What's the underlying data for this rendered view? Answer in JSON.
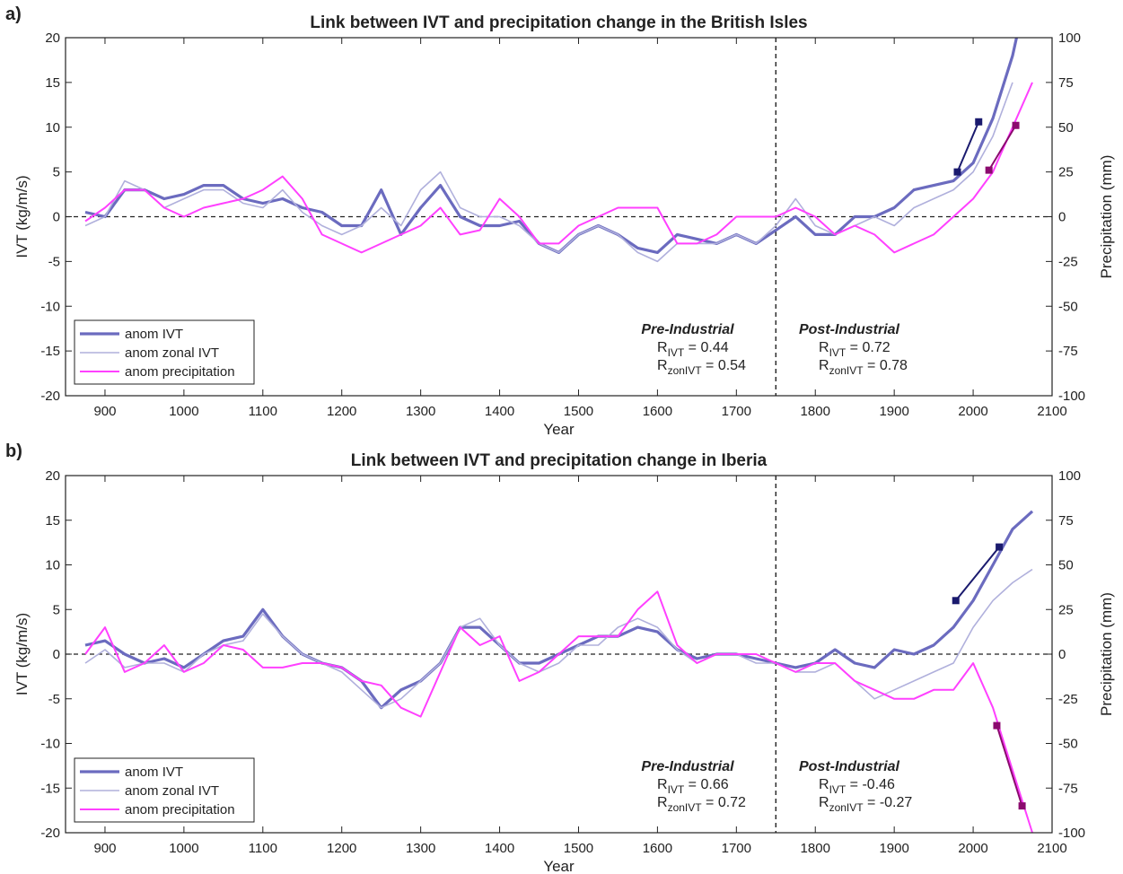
{
  "chart_data": [
    {
      "panel": "a)",
      "type": "line",
      "title": "Link between IVT and precipitation change in the British Isles",
      "xlabel": "Year",
      "ylabel": "IVT (kg/m/s)",
      "y2label": "Precipitation (mm)",
      "xlim": [
        850,
        2100
      ],
      "ylim": [
        -20,
        20
      ],
      "y2lim": [
        -100,
        100
      ],
      "xticks": [
        "900",
        "1000",
        "1100",
        "1200",
        "1300",
        "1400",
        "1500",
        "1600",
        "1700",
        "1800",
        "1900",
        "2000",
        "2100"
      ],
      "yticks": [
        "20",
        "15",
        "10",
        "5",
        "0",
        "-5",
        "-10",
        "-15",
        "-20"
      ],
      "y2ticks": [
        "100",
        "75",
        "50",
        "25",
        "0",
        "-25",
        "-50",
        "-75",
        "-100"
      ],
      "divider_x": 1750,
      "grid": false,
      "legend_position": "bottom-left",
      "legend": [
        "anom IVT",
        "anom zonal IVT",
        "anom precipitation"
      ],
      "series": [
        {
          "name": "anom IVT",
          "color": "#6b6bbf",
          "x": [
            875,
            900,
            925,
            950,
            975,
            1000,
            1025,
            1050,
            1075,
            1100,
            1125,
            1150,
            1175,
            1200,
            1225,
            1250,
            1275,
            1300,
            1325,
            1350,
            1375,
            1400,
            1425,
            1450,
            1475,
            1500,
            1525,
            1550,
            1575,
            1600,
            1625,
            1650,
            1675,
            1700,
            1725,
            1750,
            1775,
            1800,
            1825,
            1850,
            1875,
            1900,
            1925,
            1950,
            1975,
            2000,
            2025,
            2050,
            2055
          ],
          "y": [
            0.5,
            0,
            3,
            3,
            2,
            2.5,
            3.5,
            3.5,
            2,
            1.5,
            2,
            1,
            0.5,
            -1,
            -1,
            3,
            -2,
            1,
            3.5,
            0,
            -1,
            -1,
            -0.5,
            -3,
            -4,
            -2,
            -1,
            -2,
            -3.5,
            -4,
            -2,
            -2.5,
            -3,
            -2,
            -3,
            -1.5,
            0,
            -2,
            -2,
            0,
            0,
            1,
            3,
            3.5,
            4,
            6,
            11,
            18,
            20
          ]
        },
        {
          "name": "anom zonal IVT",
          "color": "#b0b0dc",
          "x": [
            875,
            900,
            925,
            950,
            975,
            1000,
            1025,
            1050,
            1075,
            1100,
            1125,
            1150,
            1175,
            1200,
            1225,
            1250,
            1275,
            1300,
            1325,
            1350,
            1375,
            1400,
            1425,
            1450,
            1475,
            1500,
            1525,
            1550,
            1575,
            1600,
            1625,
            1650,
            1675,
            1700,
            1725,
            1750,
            1775,
            1800,
            1825,
            1850,
            1875,
            1900,
            1925,
            1950,
            1975,
            2000,
            2025,
            2050
          ],
          "y": [
            -1,
            0,
            4,
            3,
            1,
            2,
            3,
            3,
            1.5,
            1,
            3,
            0.5,
            -1,
            -2,
            -1,
            1,
            -1,
            3,
            5,
            1,
            0,
            0,
            -1,
            -3,
            -4,
            -2,
            -1,
            -2,
            -4,
            -5,
            -3,
            -3,
            -3,
            -2,
            -3,
            -1,
            2,
            -1,
            -2,
            -1,
            0,
            -1,
            1,
            2,
            3,
            5,
            9,
            15
          ]
        },
        {
          "name": "anom precipitation",
          "color": "#ff40ff",
          "x": [
            875,
            900,
            925,
            950,
            975,
            1000,
            1025,
            1050,
            1075,
            1100,
            1125,
            1150,
            1175,
            1200,
            1225,
            1250,
            1275,
            1300,
            1325,
            1350,
            1375,
            1400,
            1425,
            1450,
            1475,
            1500,
            1525,
            1550,
            1575,
            1600,
            1625,
            1650,
            1675,
            1700,
            1725,
            1750,
            1775,
            1800,
            1825,
            1850,
            1875,
            1900,
            1925,
            1950,
            1975,
            2000,
            2025,
            2050,
            2075
          ],
          "y": [
            -0.5,
            1,
            3,
            3,
            1,
            0,
            1,
            1.5,
            2,
            3,
            4.5,
            2,
            -2,
            -3,
            -4,
            -3,
            -2,
            -1,
            1,
            -2,
            -1.5,
            2,
            0,
            -3,
            -3,
            -1,
            0,
            1,
            1,
            1,
            -3,
            -3,
            -2,
            0,
            0,
            0,
            1,
            0,
            -2,
            -1,
            -2,
            -4,
            -3,
            -2,
            0,
            2,
            5,
            10,
            15
          ]
        }
      ],
      "trend_lines": [
        {
          "name": "IVT trend",
          "color": "#1a1a6e",
          "x": [
            1980,
            2007
          ],
          "y": [
            5,
            10.6
          ]
        },
        {
          "name": "precipitation trend",
          "color": "#8b0a6e",
          "x": [
            2020,
            2054
          ],
          "y": [
            5.2,
            10.2
          ]
        }
      ],
      "annotations": [
        {
          "id": "pre",
          "heading": "Pre-Industrial",
          "rows": [
            {
              "sym": "R",
              "sub": "IVT",
              "value": "= 0.44"
            },
            {
              "sym": "R",
              "sub": "zonIVT",
              "value": "= 0.54"
            }
          ]
        },
        {
          "id": "post",
          "heading": "Post-Industrial",
          "rows": [
            {
              "sym": "R",
              "sub": "IVT",
              "value": "= 0.72"
            },
            {
              "sym": "R",
              "sub": "zonIVT",
              "value": "= 0.78"
            }
          ]
        }
      ]
    },
    {
      "panel": "b)",
      "type": "line",
      "title": "Link between IVT and precipitation change in Iberia",
      "xlabel": "Year",
      "ylabel": "IVT (kg/m/s)",
      "y2label": "Precipitation (mm)",
      "xlim": [
        850,
        2100
      ],
      "ylim": [
        -20,
        20
      ],
      "y2lim": [
        -100,
        100
      ],
      "xticks": [
        "900",
        "1000",
        "1100",
        "1200",
        "1300",
        "1400",
        "1500",
        "1600",
        "1700",
        "1800",
        "1900",
        "2000",
        "2100"
      ],
      "yticks": [
        "20",
        "15",
        "10",
        "5",
        "0",
        "-5",
        "-10",
        "-15",
        "-20"
      ],
      "y2ticks": [
        "100",
        "75",
        "50",
        "25",
        "0",
        "-25",
        "-50",
        "-75",
        "-100"
      ],
      "divider_x": 1750,
      "grid": false,
      "legend_position": "bottom-left",
      "legend": [
        "anom IVT",
        "anom zonal IVT",
        "anom precipitation"
      ],
      "series": [
        {
          "name": "anom IVT",
          "color": "#6b6bbf",
          "x": [
            875,
            900,
            925,
            950,
            975,
            1000,
            1025,
            1050,
            1075,
            1100,
            1125,
            1150,
            1175,
            1200,
            1225,
            1250,
            1275,
            1300,
            1325,
            1350,
            1375,
            1400,
            1425,
            1450,
            1475,
            1500,
            1525,
            1550,
            1575,
            1600,
            1625,
            1650,
            1675,
            1700,
            1725,
            1750,
            1775,
            1800,
            1825,
            1850,
            1875,
            1900,
            1925,
            1950,
            1975,
            2000,
            2025,
            2050,
            2075
          ],
          "y": [
            1,
            1.5,
            0,
            -1,
            -0.5,
            -1.5,
            0,
            1.5,
            2,
            5,
            2,
            0,
            -1,
            -1.5,
            -3,
            -6,
            -4,
            -3,
            -1,
            3,
            3,
            1,
            -1,
            -1,
            0,
            1,
            2,
            2,
            3,
            2.5,
            0.5,
            -0.5,
            0,
            0,
            -0.5,
            -1,
            -1.5,
            -1,
            0.5,
            -1,
            -1.5,
            0.5,
            0,
            1,
            3,
            6,
            10,
            14,
            16
          ]
        },
        {
          "name": "anom zonal IVT",
          "color": "#b0b0dc",
          "x": [
            875,
            900,
            925,
            950,
            975,
            1000,
            1025,
            1050,
            1075,
            1100,
            1125,
            1150,
            1175,
            1200,
            1225,
            1250,
            1275,
            1300,
            1325,
            1350,
            1375,
            1400,
            1425,
            1450,
            1475,
            1500,
            1525,
            1550,
            1575,
            1600,
            1625,
            1650,
            1675,
            1700,
            1725,
            1750,
            1775,
            1800,
            1825,
            1850,
            1875,
            1900,
            1925,
            1950,
            1975,
            2000,
            2025,
            2050,
            2075
          ],
          "y": [
            -1,
            0.5,
            -1.5,
            -1,
            -1,
            -2,
            0,
            1,
            1.5,
            4.5,
            2,
            0,
            -1,
            -2,
            -4,
            -6,
            -5,
            -3,
            -1,
            3,
            4,
            1,
            -1,
            -2,
            -1,
            1,
            1,
            3,
            4,
            3,
            0.5,
            -1,
            0,
            0,
            -1,
            -1,
            -2,
            -2,
            -1,
            -3,
            -5,
            -4,
            -3,
            -2,
            -1,
            3,
            6,
            8,
            9.5
          ]
        },
        {
          "name": "anom precipitation",
          "color": "#ff40ff",
          "x": [
            875,
            900,
            925,
            950,
            975,
            1000,
            1025,
            1050,
            1075,
            1100,
            1125,
            1150,
            1175,
            1200,
            1225,
            1250,
            1275,
            1300,
            1325,
            1350,
            1375,
            1400,
            1425,
            1450,
            1475,
            1500,
            1525,
            1550,
            1575,
            1600,
            1625,
            1650,
            1675,
            1700,
            1725,
            1750,
            1775,
            1800,
            1825,
            1850,
            1875,
            1900,
            1925,
            1950,
            1975,
            2000,
            2025,
            2050,
            2075
          ],
          "y": [
            0,
            3,
            -2,
            -1,
            1,
            -2,
            -1,
            1,
            0.5,
            -1.5,
            -1.5,
            -1,
            -1,
            -1.5,
            -3,
            -3.5,
            -6,
            -7,
            -2,
            3,
            1,
            2,
            -3,
            -2,
            0,
            2,
            2,
            2,
            5,
            7,
            1,
            -1,
            0,
            0,
            0,
            -1,
            -2,
            -1,
            -1,
            -3,
            -4,
            -5,
            -5,
            -4,
            -4,
            -1,
            -6,
            -13,
            -20
          ]
        }
      ],
      "trend_lines": [
        {
          "name": "IVT trend",
          "color": "#1a1a6e",
          "x": [
            1978,
            2033
          ],
          "y": [
            6,
            12
          ]
        },
        {
          "name": "precipitation trend",
          "color": "#8b0a6e",
          "x": [
            2030,
            2062
          ],
          "y": [
            -8,
            -17
          ]
        }
      ],
      "annotations": [
        {
          "id": "pre",
          "heading": "Pre-Industrial",
          "rows": [
            {
              "sym": "R",
              "sub": "IVT",
              "value": "= 0.66"
            },
            {
              "sym": "R",
              "sub": "zonIVT",
              "value": "= 0.72"
            }
          ]
        },
        {
          "id": "post",
          "heading": "Post-Industrial",
          "rows": [
            {
              "sym": "R",
              "sub": "IVT",
              "value": "= -0.46"
            },
            {
              "sym": "R",
              "sub": "zonIVT",
              "value": "= -0.27"
            }
          ]
        }
      ]
    }
  ]
}
